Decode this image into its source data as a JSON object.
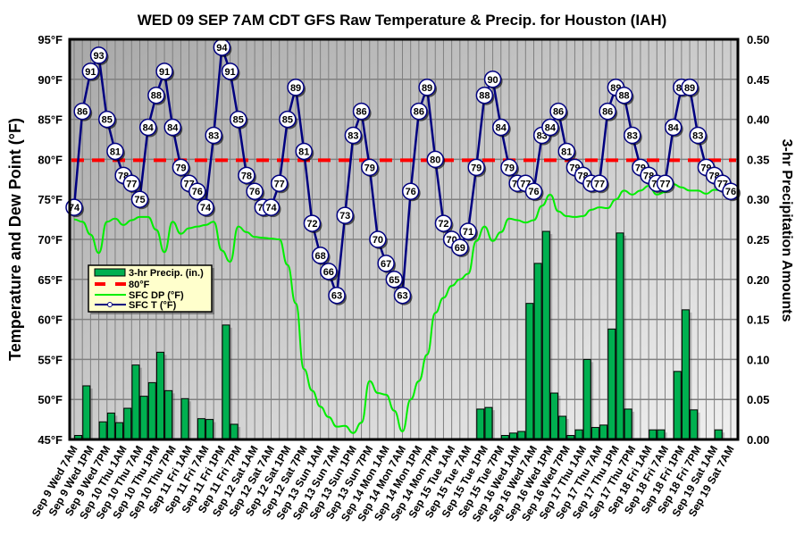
{
  "chart_data": {
    "type": "line",
    "title": "WED 09 SEP 7AM CDT GFS Raw Temperature & Precip. for Houston (IAH)",
    "ylabel": "Temperature and Dew Point (°F)",
    "y2label": "3-hr Precipitation Amounts",
    "ylim": [
      45,
      95
    ],
    "y2lim": [
      0,
      0.5
    ],
    "yticks": [
      "45°F",
      "50°F",
      "55°F",
      "60°F",
      "65°F",
      "70°F",
      "75°F",
      "80°F",
      "85°F",
      "90°F",
      "95°F"
    ],
    "y2ticks": [
      "0.00",
      "0.05",
      "0.10",
      "0.15",
      "0.20",
      "0.25",
      "0.30",
      "0.35",
      "0.40",
      "0.45",
      "0.50"
    ],
    "grid": true,
    "legend_position": "middle-left",
    "legend": [
      "3-hr Precip. (in.)",
      "80°F",
      "SFC DP (°F)",
      "SFC T (°F)"
    ],
    "xtick_labels": [
      "Sep 9 Wed 7AM",
      "Sep 9 Wed 1PM",
      "Sep 9 Wed 7PM",
      "Sep 10 Thu 1AM",
      "Sep 10 Thu 7AM",
      "Sep 10 Thu 1PM",
      "Sep 10 Thu 7PM",
      "Sep 11 Fri 1AM",
      "Sep 11 Fri 7AM",
      "Sep 11 Fri 1PM",
      "Sep 11 Fri 7PM",
      "Sep 12 Sat 1AM",
      "Sep 12 Sat 7AM",
      "Sep 12 Sat 1PM",
      "Sep 12 Sat 7PM",
      "Sep 13 Sun 1AM",
      "Sep 13 Sun 7AM",
      "Sep 13 Sun 1PM",
      "Sep 13 Sun 7PM",
      "Sep 14 Mon 1AM",
      "Sep 14 Mon 7AM",
      "Sep 14 Mon 1PM",
      "Sep 14 Mon 7PM",
      "Sep 15 Tue 1AM",
      "Sep 15 Tue 7AM",
      "Sep 15 Tue 1PM",
      "Sep 15 Tue 7PM",
      "Sep 16 Wed 1AM",
      "Sep 16 Wed 7AM",
      "Sep 16 Wed 1PM",
      "Sep 16 Wed 7PM",
      "Sep 17 Thu 1AM",
      "Sep 17 Thu 7AM",
      "Sep 17 Thu 1PM",
      "Sep 17 Thu 7PM",
      "Sep 18 Fri 1AM",
      "Sep 18 Fri 7AM",
      "Sep 18 Fri 1PM",
      "Sep 18 Fri 7PM",
      "Sep 19 Sat 1AM",
      "Sep 19 Sat 7AM"
    ],
    "reference_line": {
      "name": "80°F",
      "value": 80
    },
    "series": [
      {
        "name": "SFC T (°F)",
        "color": "#000080",
        "values": [
          74,
          86,
          91,
          93,
          85,
          81,
          78,
          77,
          75,
          84,
          88,
          91,
          84,
          79,
          77,
          76,
          74,
          83,
          94,
          91,
          85,
          78,
          76,
          74,
          74,
          77,
          85,
          89,
          81,
          72,
          68,
          66,
          63,
          73,
          83,
          86,
          79,
          70,
          67,
          65,
          63,
          76,
          86,
          89,
          80,
          72,
          70,
          69,
          71,
          79,
          88,
          90,
          84,
          79,
          77,
          77,
          76,
          83,
          84,
          86,
          81,
          79,
          78,
          77,
          77,
          86,
          89,
          88,
          83,
          79,
          78,
          77,
          77,
          84,
          89,
          89,
          83,
          79,
          78,
          77,
          76
        ]
      },
      {
        "name": "SFC DP (°F)",
        "color": "#00ee00",
        "values": [
          72.5,
          72.2,
          70.6,
          68.3,
          72.2,
          72.6,
          71.8,
          72.4,
          72.8,
          72.8,
          71.2,
          68.4,
          72.2,
          70.7,
          71.4,
          71.6,
          71.8,
          72.2,
          68.6,
          67.2,
          71.6,
          70.9,
          70.3,
          70.2,
          70.1,
          70.0,
          66.8,
          62.0,
          53.8,
          51.1,
          49.1,
          47.8,
          46.6,
          46.7,
          45.8,
          47.1,
          52.3,
          50.8,
          50.6,
          48.6,
          46.0,
          50.0,
          52.3,
          55.6,
          60.8,
          62.7,
          64.2,
          65.0,
          65.7,
          69.8,
          71.6,
          69.8,
          70.9,
          72.6,
          72.4,
          72.1,
          72.4,
          74.2,
          75.6,
          73.5,
          72.9,
          72.8,
          72.9,
          73.7,
          74.0,
          73.9,
          75.0,
          76.1,
          75.6,
          76.1,
          76.7,
          75.6,
          75.9,
          76.9,
          76.5,
          76.1,
          76.1,
          75.7,
          76.2,
          76.1,
          75.7
        ]
      },
      {
        "name": "3-hr Precip. (in.)",
        "color": "#00b050",
        "axis": "right",
        "values": [
          0.005,
          0.067,
          0,
          0.022,
          0.033,
          0.021,
          0.039,
          0.093,
          0.054,
          0.071,
          0.109,
          0.061,
          0,
          0.051,
          0,
          0.026,
          0.025,
          0,
          0.143,
          0.019,
          0,
          0,
          0.001,
          0.001,
          0.001,
          0.001,
          0.001,
          0.001,
          0.001,
          0,
          0,
          0.001,
          0,
          0,
          0,
          0,
          0,
          0,
          0,
          0,
          0,
          0,
          0,
          0,
          0,
          0,
          0,
          0,
          0,
          0.038,
          0.04,
          0,
          0.005,
          0.008,
          0.01,
          0.17,
          0.22,
          0.26,
          0.058,
          0.029,
          0.005,
          0.012,
          0.1,
          0.015,
          0.018,
          0.138,
          0.258,
          0.038,
          0,
          0,
          0.012,
          0.012,
          0,
          0.085,
          0.162,
          0.037,
          0,
          0,
          0.012,
          0
        ]
      }
    ]
  }
}
